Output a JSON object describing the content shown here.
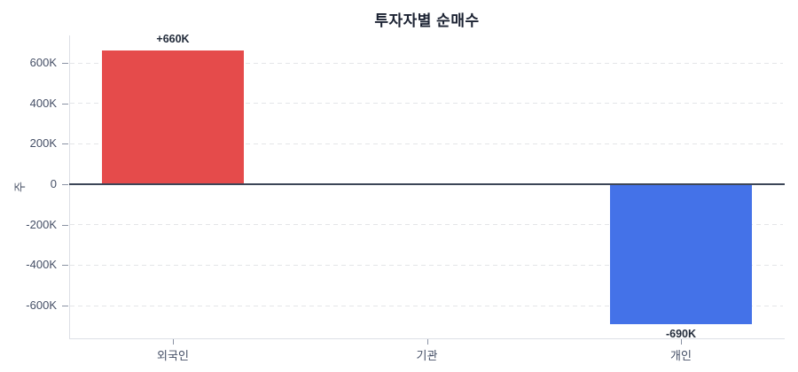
{
  "chart_data": {
    "type": "bar",
    "title": "투자자별 순매수",
    "xlabel": "",
    "ylabel": "주",
    "categories": [
      "외국인",
      "기관",
      "개인"
    ],
    "values": [
      660000,
      0,
      -690000
    ],
    "values_in_thousands": [
      660,
      0,
      -690
    ],
    "bar_labels": [
      "+660K",
      "",
      "-690K"
    ],
    "yticks": [
      600,
      400,
      200,
      0,
      -200,
      -400,
      -600
    ],
    "ytick_labels": [
      "600K",
      "400K",
      "200K",
      "0",
      "-200K",
      "-400K",
      "-600K"
    ],
    "ylim": [
      -760,
      740
    ],
    "legend": "none",
    "grid": "horizontal-dashed",
    "zero_line": true,
    "colors": {
      "positive_bar": "#e54b4b",
      "negative_bar": "#4472e8",
      "zero_line": "#3c4657",
      "grid": "#e4e5e8",
      "spine": "#dde0e6",
      "title_text": "#1b2232",
      "tick_text": "#454f66"
    }
  }
}
